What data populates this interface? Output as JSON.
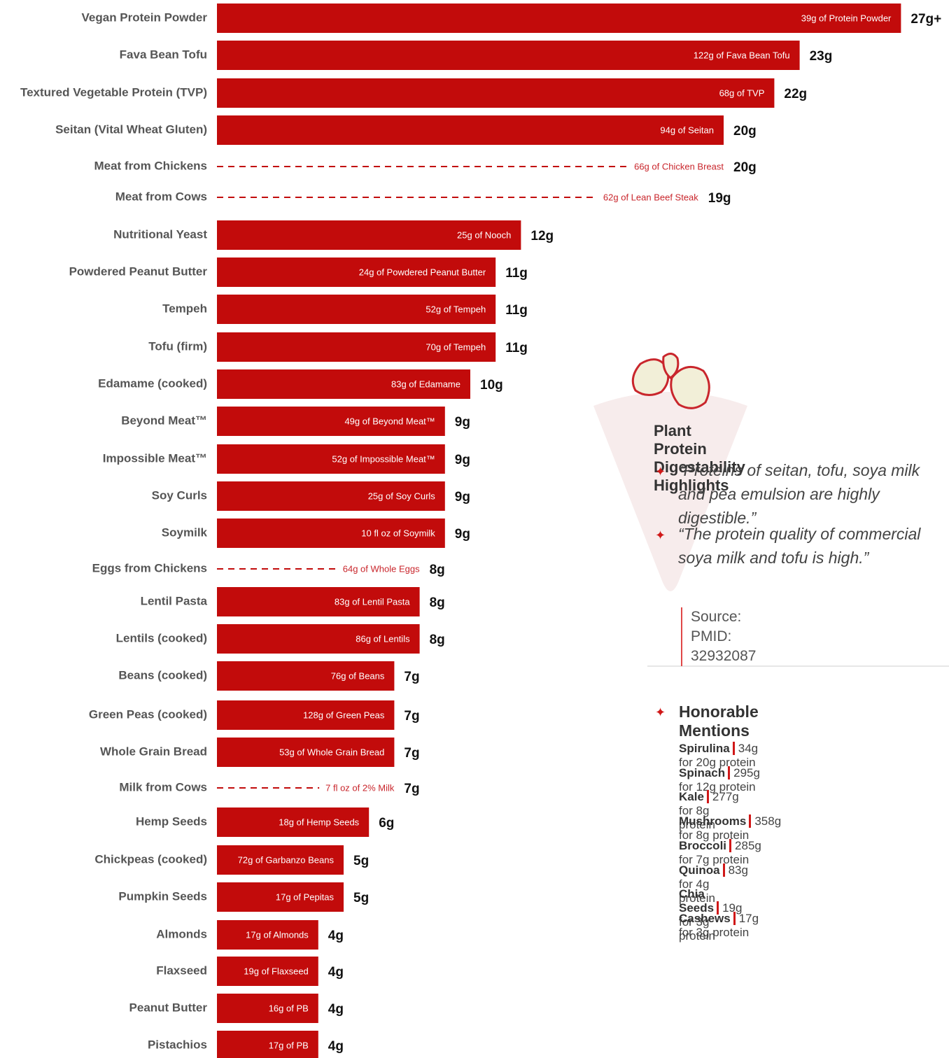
{
  "chart_data": {
    "type": "bar",
    "color": "#c20b0b",
    "categories": [
      "Vegan Protein Powder",
      "Fava Bean Tofu",
      "Textured Vegetable Protein (TVP)",
      "Seitan (Vital Wheat Gluten)",
      "Meat from Chickens",
      "Meat from Cows",
      "Nutritional Yeast",
      "Powdered Peanut Butter",
      "Tempeh",
      "Tofu (firm)",
      "Edamame (cooked)",
      "Beyond Meat™",
      "Impossible Meat™",
      "Soy Curls",
      "Soymilk",
      "Eggs from Chickens",
      "Lentil Pasta",
      "Lentils (cooked)",
      "Beans (cooked)",
      "Green Peas (cooked)",
      "Whole Grain Bread",
      "Milk from Cows",
      "Hemp Seeds",
      "Chickpeas (cooked)",
      "Pumpkin Seeds",
      "Almonds",
      "Flaxseed",
      "Peanut Butter",
      "Pistachios"
    ],
    "values": [
      27,
      23,
      22,
      20,
      20,
      19,
      12,
      11,
      11,
      11,
      10,
      9,
      9,
      9,
      9,
      8,
      8,
      8,
      7,
      7,
      7,
      7,
      6,
      5,
      5,
      4,
      4,
      4,
      4
    ],
    "value_labels": [
      "27g+",
      "23g",
      "22g",
      "20g",
      "20g",
      "19g",
      "12g",
      "11g",
      "11g",
      "11g",
      "10g",
      "9g",
      "9g",
      "9g",
      "9g",
      "8g",
      "8g",
      "8g",
      "7g",
      "7g",
      "7g",
      "7g",
      "6g",
      "5g",
      "5g",
      "4g",
      "4g",
      "4g",
      "4g"
    ],
    "serving_labels": [
      "39g of Protein Powder",
      "122g of Fava Bean Tofu",
      "68g of TVP",
      "94g of Seitan",
      "66g of Chicken Breast",
      "62g of Lean Beef Steak",
      "25g of Nooch",
      "24g of Powdered Peanut Butter",
      "52g of Tempeh",
      "70g of Tempeh",
      "83g of Edamame",
      "49g of Beyond Meat™",
      "52g of Impossible Meat™",
      "25g of Soy Curls",
      "10 fl oz of Soymilk",
      "64g of Whole Eggs",
      "83g of Lentil Pasta",
      "86g of Lentils",
      "76g of Beans",
      "128g of Green Peas",
      "53g of Whole Grain Bread",
      "7 fl oz of 2% Milk",
      "18g of Hemp Seeds",
      "72g of Garbanzo Beans",
      "17g of Pepitas",
      "17g of Almonds",
      "19g of Flaxseed",
      "16g of PB",
      "17g of PB"
    ],
    "row_styles": [
      "bar",
      "bar",
      "bar",
      "bar",
      "dashed",
      "dashed",
      "bar",
      "bar",
      "bar",
      "bar",
      "bar",
      "bar",
      "bar",
      "bar",
      "bar",
      "dashed",
      "bar",
      "bar",
      "bar",
      "bar",
      "bar",
      "dashed",
      "bar",
      "bar",
      "bar",
      "bar",
      "bar",
      "bar",
      "bar"
    ]
  },
  "panel": {
    "title": "Plant Protein Digestability Highlights",
    "quotes": [
      "“Proteins of seitan, tofu, soya milk and pea emulsion are highly digestible.”",
      "“The protein quality of commercial soya milk and tofu is high.”"
    ],
    "source": "Source: PMID: 32932087",
    "mentions_title": "Honorable Mentions",
    "mentions": [
      {
        "name": "Spirulina",
        "detail": "34g for 20g protein"
      },
      {
        "name": "Spinach",
        "detail": "295g for 12g protein"
      },
      {
        "name": "Kale",
        "detail": "277g for 8g protein"
      },
      {
        "name": "Mushrooms",
        "detail": "358g for 8g protein"
      },
      {
        "name": "Broccoli",
        "detail": "285g for 7g protein"
      },
      {
        "name": "Quinoa",
        "detail": "83g for 4g protein"
      },
      {
        "name": "Chia Seeds",
        "detail": "19g for 3g protein"
      },
      {
        "name": "Cashews",
        "detail": "17g for 3g protein"
      }
    ]
  }
}
